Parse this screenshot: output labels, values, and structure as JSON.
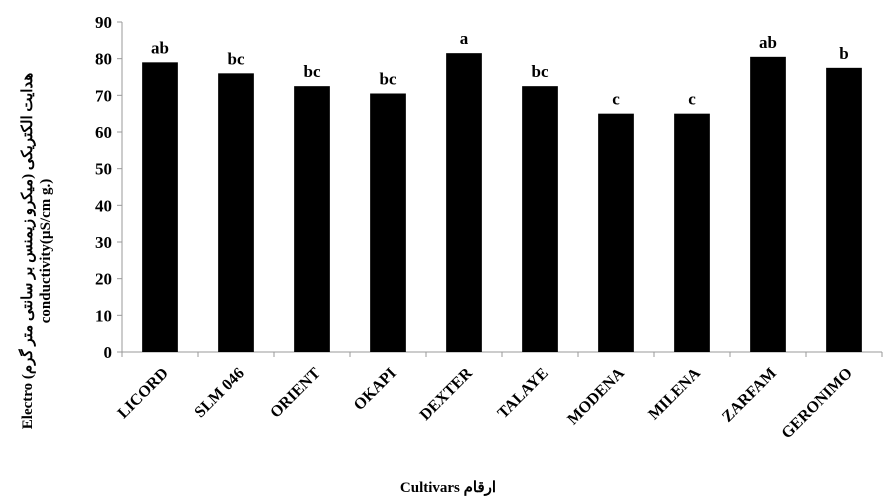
{
  "chart_data": {
    "type": "bar",
    "categories": [
      "LICORD",
      "SLM 046",
      "ORIENT",
      "OKAPI",
      "DEXTER",
      "TALAYE",
      "MODENA",
      "MILENA",
      "ZARFAM",
      "GERONIMO"
    ],
    "values": [
      79,
      76,
      72.5,
      70.5,
      81.5,
      72.5,
      65,
      65,
      80.5,
      77.5
    ],
    "data_labels": [
      "ab",
      "bc",
      "bc",
      "bc",
      "a",
      "bc",
      "c",
      "c",
      "ab",
      "b"
    ],
    "ylabel_line1": "Electro (هدایت الکتریکی (میکرو زیمنس بر سانتی متر گرم",
    "ylabel_line2": "conductivity(µS/cm g.)",
    "xlabel": "Cultivars ارقام",
    "ylim": [
      0,
      90
    ],
    "yticks": [
      0,
      10,
      20,
      30,
      40,
      50,
      60,
      70,
      80,
      90
    ],
    "grid": false,
    "bar_color": "#000000"
  }
}
